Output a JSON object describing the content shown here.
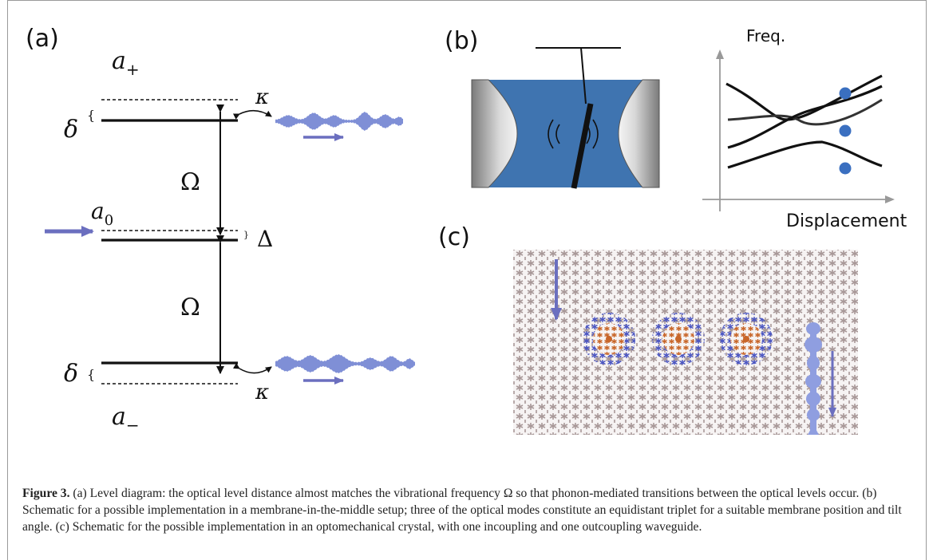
{
  "panel_a": {
    "panel_label": "(a)",
    "level_upper": "a",
    "level_upper_sub": "+",
    "level_middle": "a",
    "level_middle_sub": "0",
    "level_lower": "a",
    "level_lower_sub": "−",
    "delta_symbol": "δ",
    "kappa_symbol": "κ",
    "omega_symbol": "Ω",
    "detuning_symbol": "Δ"
  },
  "panel_b": {
    "panel_label": "(b)",
    "y_axis_label": "Freq.",
    "x_axis_label": "Displacement"
  },
  "panel_c": {
    "panel_label": "(c)"
  },
  "colors": {
    "cavity_field": "#3f74b0",
    "pulse": "#7f8fd6",
    "arrow": "#6b6fbf",
    "dot": "#3a6fc0",
    "crystal": "#a89898",
    "defect_outer": "#4a55c2",
    "defect_inner": "#c8662a"
  },
  "caption": {
    "label": "Figure 3.",
    "text": " (a) Level diagram: the optical level distance almost matches the vibrational frequency Ω so that phonon-mediated transitions between the optical levels occur. (b) Schematic for a possible implementation in a membrane-in-the-middle setup; three of the optical modes constitute an equidistant triplet for a suitable membrane position and tilt angle. (c) Schematic for the possible implementation in an optomechanical crystal, with one incoupling and one outcoupling waveguide."
  }
}
